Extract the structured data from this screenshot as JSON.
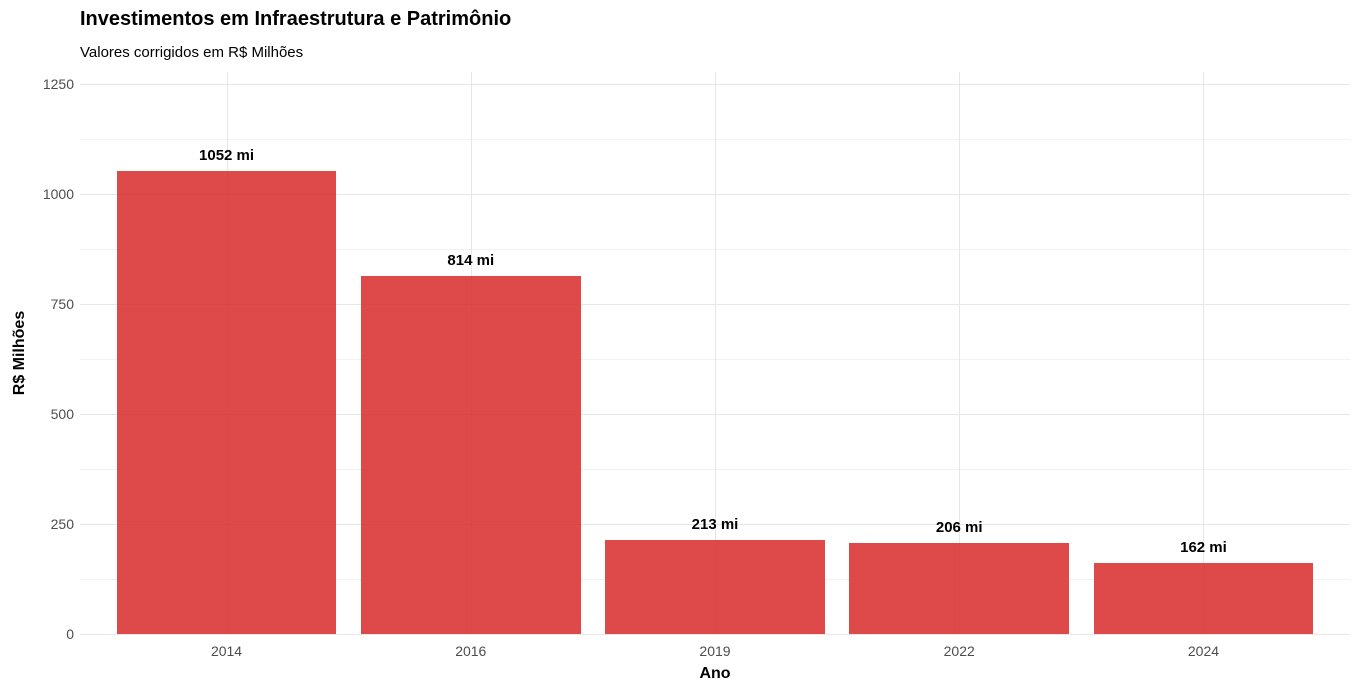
{
  "chart_data": {
    "type": "bar",
    "title": "Investimentos em Infraestrutura e Patrimônio",
    "subtitle": "Valores corrigidos em R$ Milhões",
    "xlabel": "Ano",
    "ylabel": "R$ Milhões",
    "categories": [
      "2014",
      "2016",
      "2019",
      "2022",
      "2024"
    ],
    "values": [
      1052,
      814,
      213,
      206,
      162
    ],
    "bar_labels": [
      "1052 mi",
      "814 mi",
      "213 mi",
      "206 mi",
      "162 mi"
    ],
    "y_ticks": [
      0,
      250,
      500,
      750,
      1000,
      1250
    ],
    "y_tick_labels": [
      "0",
      "250",
      "500",
      "750",
      "1000",
      "1250"
    ],
    "ylim": [
      0,
      1250
    ],
    "grid": "on",
    "legend": "none",
    "colors": {
      "bar_fill": "rgba(217,48,49,0.88)",
      "bar_fill_hex_rendered": "#DE494A",
      "grid_major": "#E7E7E7",
      "grid_minor": "#F2F2F2",
      "tick_label": "#4D4D4D",
      "text": "#000000",
      "background": "#FFFFFF"
    }
  }
}
